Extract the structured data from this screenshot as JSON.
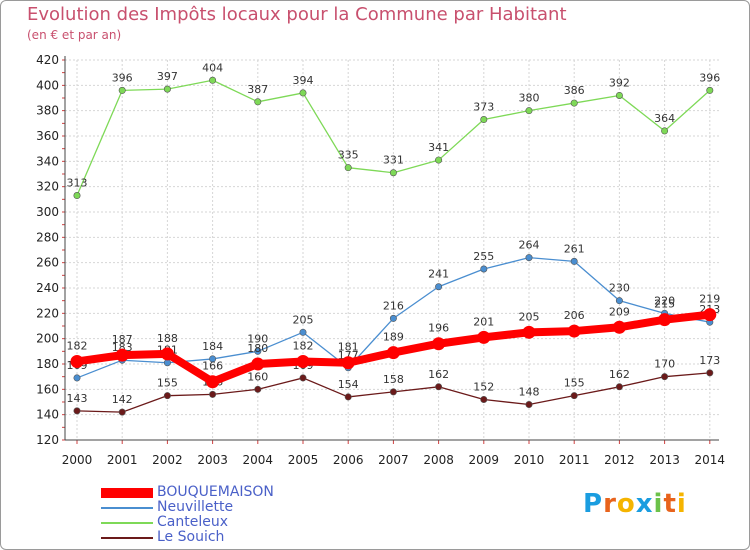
{
  "chart_data": {
    "type": "line",
    "title": "Evolution des Impôts locaux pour la Commune par Habitant",
    "subtitle": "(en € et par an)",
    "x": [
      "2000",
      "2001",
      "2002",
      "2003",
      "2004",
      "2005",
      "2006",
      "2007",
      "2008",
      "2009",
      "2010",
      "2011",
      "2012",
      "2013",
      "2014"
    ],
    "ylim": [
      120,
      420
    ],
    "yticks": [
      120,
      140,
      160,
      180,
      200,
      220,
      240,
      260,
      280,
      300,
      320,
      340,
      360,
      380,
      400,
      420
    ],
    "grid": true,
    "legend_position": "bottom-left",
    "series": [
      {
        "name": "BOUQUEMAISON",
        "color": "#ff0000",
        "values": [
          182,
          187,
          188,
          166,
          180,
          182,
          181,
          189,
          196,
          201,
          205,
          206,
          209,
          215,
          219
        ]
      },
      {
        "name": "Neuvillette",
        "color": "#4a8ed0",
        "values": [
          169,
          183,
          181,
          184,
          190,
          205,
          177,
          216,
          241,
          255,
          264,
          261,
          230,
          220,
          213
        ]
      },
      {
        "name": "Canteleux",
        "color": "#7ed957",
        "values": [
          313,
          396,
          397,
          404,
          387,
          394,
          335,
          331,
          341,
          373,
          380,
          386,
          392,
          364,
          396
        ]
      },
      {
        "name": "Le Souich",
        "color": "#6b1a1a",
        "values": [
          143,
          142,
          155,
          156,
          160,
          169,
          154,
          158,
          162,
          152,
          148,
          155,
          162,
          170,
          173
        ]
      }
    ]
  },
  "logo": {
    "text": "Proxiti",
    "colors": [
      "#1a9de0",
      "#e8631c",
      "#f5b400",
      "#1a9de0",
      "#6cc24a",
      "#e8631c",
      "#f5b400"
    ]
  }
}
